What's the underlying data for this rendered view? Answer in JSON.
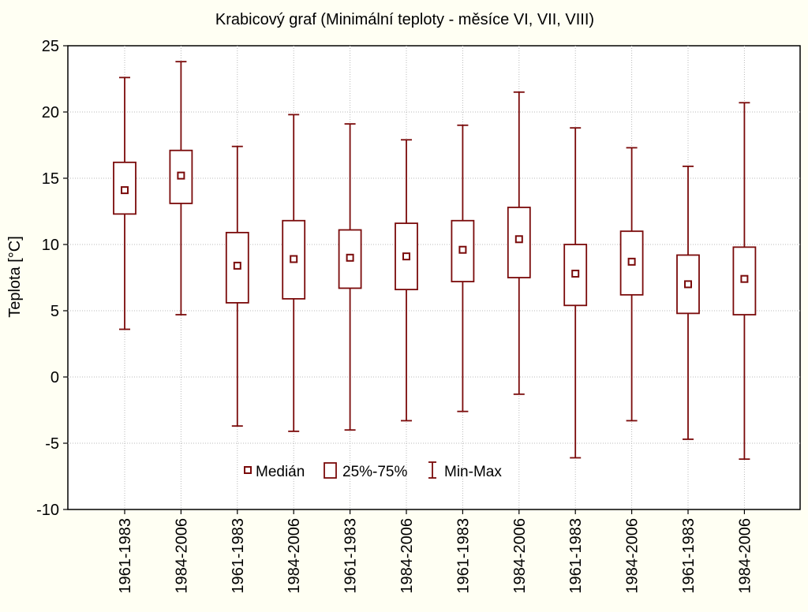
{
  "chart_data": {
    "type": "box",
    "title": "Krabicový graf (Minimální teploty - měsíce VI, VII, VIII)",
    "xlabel": "",
    "ylabel": "Teplota [°C]",
    "ylim": [
      -10,
      25
    ],
    "yticks": [
      -10,
      -5,
      0,
      5,
      10,
      15,
      20,
      25
    ],
    "grid": true,
    "legend_position": "bottom-center",
    "colors": {
      "box": "#7a0a0a",
      "background": "#fffff3",
      "plot_background": "#ffffff"
    },
    "categories": [
      "1961-1983",
      "1984-2006",
      "1961-1983",
      "1984-2006",
      "1961-1983",
      "1984-2006",
      "1961-1983",
      "1984-2006",
      "1961-1983",
      "1984-2006",
      "1961-1983",
      "1984-2006"
    ],
    "series": [
      {
        "name": "Medián",
        "values": [
          14.1,
          15.2,
          8.4,
          8.9,
          9.0,
          9.1,
          9.6,
          10.4,
          7.8,
          8.7,
          7.0,
          7.4
        ]
      },
      {
        "name": "25%-75%",
        "q1": [
          12.3,
          13.1,
          5.6,
          5.9,
          6.7,
          6.6,
          7.2,
          7.5,
          5.4,
          6.2,
          4.8,
          4.7
        ],
        "q3": [
          16.2,
          17.1,
          10.9,
          11.8,
          11.1,
          11.6,
          11.8,
          12.8,
          10.0,
          11.0,
          9.2,
          9.8
        ]
      },
      {
        "name": "Min-Max",
        "min": [
          3.6,
          4.7,
          -3.7,
          -4.1,
          -4.0,
          -3.3,
          -2.6,
          -1.3,
          -6.1,
          -3.3,
          -4.7,
          -6.2
        ],
        "max": [
          22.6,
          23.8,
          17.4,
          19.8,
          19.1,
          17.9,
          19.0,
          21.5,
          18.8,
          17.3,
          15.9,
          20.7
        ]
      }
    ]
  }
}
